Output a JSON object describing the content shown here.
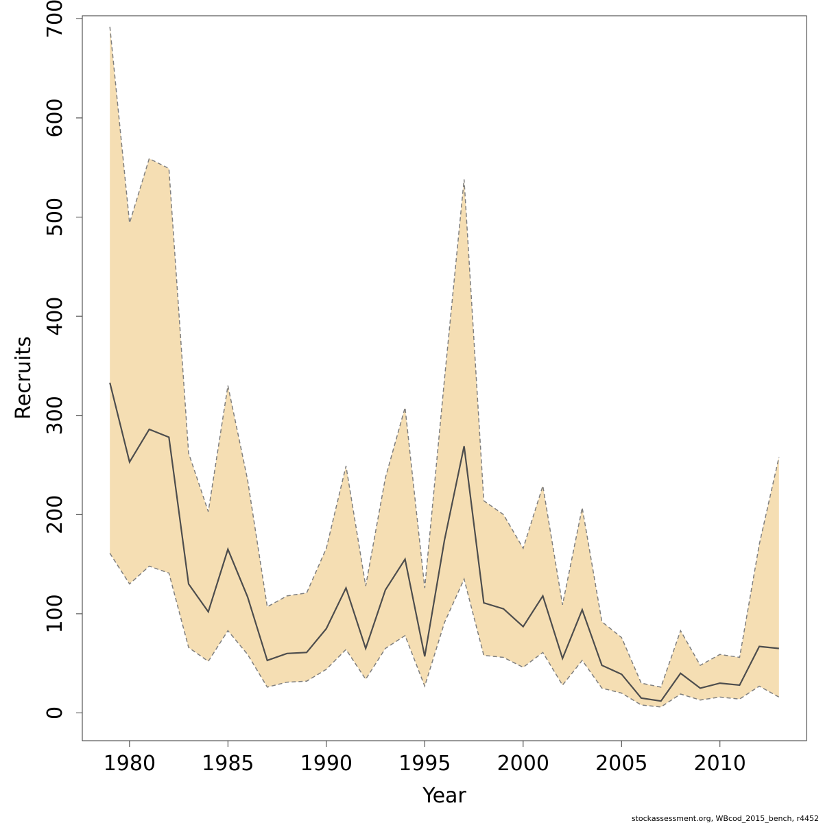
{
  "chart_data": {
    "type": "area",
    "title": "",
    "xlabel": "Year",
    "ylabel": "Recruits",
    "xlim": [
      1977.6,
      2014.4
    ],
    "ylim": [
      -28,
      703
    ],
    "xticks": [
      1980,
      1985,
      1990,
      1995,
      2000,
      2005,
      2010
    ],
    "yticks": [
      0,
      100,
      200,
      300,
      400,
      500,
      600,
      700
    ],
    "grid": false,
    "x": [
      1979,
      1980,
      1981,
      1982,
      1983,
      1984,
      1985,
      1986,
      1987,
      1988,
      1989,
      1990,
      1991,
      1992,
      1993,
      1994,
      1995,
      1996,
      1997,
      1998,
      1999,
      2000,
      2001,
      2002,
      2003,
      2004,
      2005,
      2006,
      2007,
      2008,
      2009,
      2010,
      2011,
      2012,
      2013
    ],
    "series": [
      {
        "role": "estimate",
        "values": [
          333,
          253,
          286,
          278,
          130,
          102,
          165,
          117,
          53,
          60,
          61,
          85,
          126,
          65,
          124,
          155,
          57,
          174,
          269,
          111,
          105,
          87,
          118,
          55,
          104,
          48,
          39,
          15,
          12,
          40,
          25,
          30,
          28,
          67,
          65
        ]
      },
      {
        "role": "upper",
        "values": [
          692,
          494,
          559,
          549,
          262,
          203,
          330,
          235,
          107,
          118,
          121,
          166,
          249,
          128,
          237,
          308,
          126,
          336,
          538,
          214,
          200,
          166,
          229,
          109,
          207,
          92,
          76,
          30,
          26,
          83,
          48,
          59,
          56,
          170,
          258
        ]
      },
      {
        "role": "lower",
        "values": [
          161,
          130,
          148,
          141,
          66,
          52,
          83,
          59,
          26,
          31,
          32,
          44,
          64,
          34,
          65,
          78,
          27,
          91,
          135,
          58,
          56,
          46,
          61,
          28,
          53,
          25,
          20,
          8,
          6,
          19,
          13,
          16,
          14,
          27,
          16
        ]
      }
    ],
    "colors": {
      "band": "#f5deb3",
      "estimate_line": "#4d4d4d",
      "bound_line": "#7f7f7f",
      "axis": "#333333"
    }
  },
  "footnote": "stockassessment.org, WBcod_2015_bench, r4452"
}
